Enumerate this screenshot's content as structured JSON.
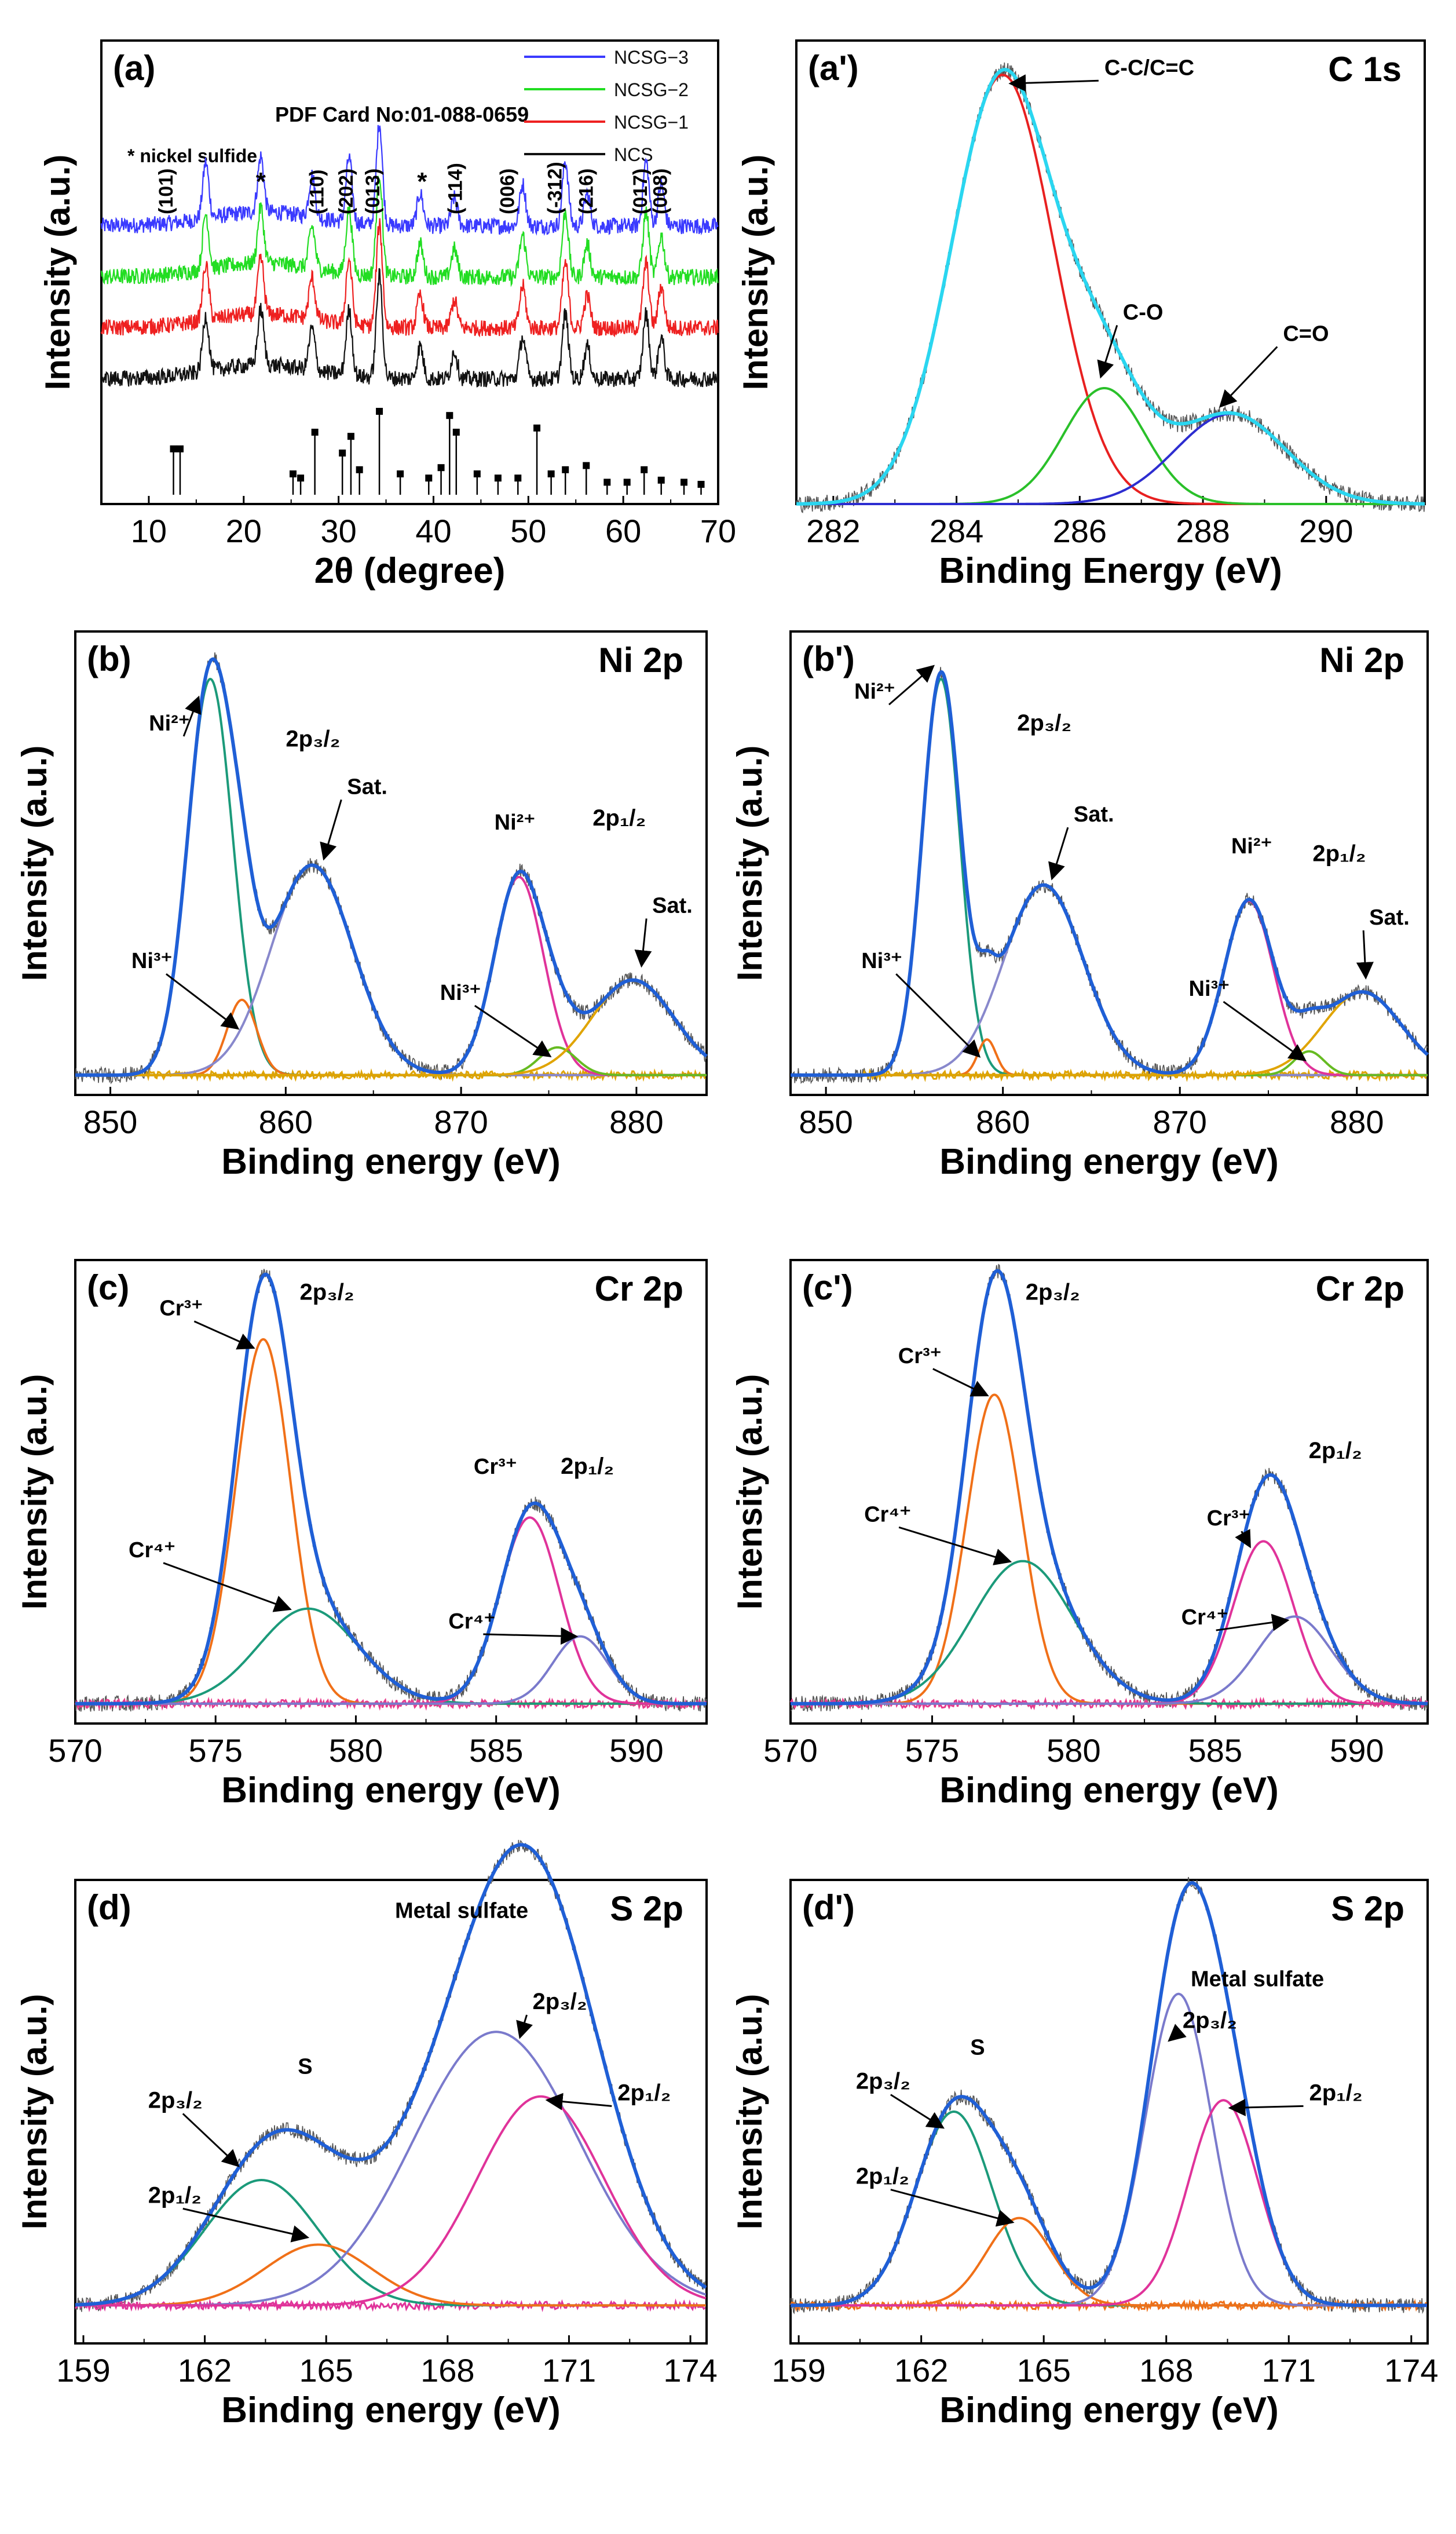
{
  "figure": {
    "background": "#ffffff",
    "axis_color": "#000000",
    "fit_color": "#1f5fd6",
    "raw_color": "#555555"
  },
  "chart_data": [
    {
      "id": "a",
      "type": "line",
      "panel_label": "(a)",
      "xlabel": "2θ (degree)",
      "ylabel": "Intensity (a.u.)",
      "xlim": [
        5,
        70
      ],
      "ylim": [
        0,
        1
      ],
      "xticks": [
        "10",
        "20",
        "30",
        "40",
        "50",
        "60",
        "70"
      ],
      "pdf_card": "PDF Card No:01-088-0659",
      "note": "* nickel sulfide",
      "legend": [
        {
          "name": "NCSG−3",
          "color": "#3a3aff"
        },
        {
          "name": "NCSG−2",
          "color": "#22dd22"
        },
        {
          "name": "NCSG−1",
          "color": "#ee2020"
        },
        {
          "name": "NCS",
          "color": "#111111"
        }
      ],
      "series": [
        {
          "name": "NCSG−3",
          "color": "#3a3aff",
          "offset": 0.6
        },
        {
          "name": "NCSG−2",
          "color": "#22dd22",
          "offset": 0.49
        },
        {
          "name": "NCSG−1",
          "color": "#ee2020",
          "offset": 0.38
        },
        {
          "name": "NCS",
          "color": "#111111",
          "offset": 0.27
        }
      ],
      "peaks": [
        {
          "x": 16,
          "h": 0.12
        },
        {
          "x": 21.8,
          "h": 0.12
        },
        {
          "x": 27.2,
          "h": 0.09
        },
        {
          "x": 31.1,
          "h": 0.14
        },
        {
          "x": 34.3,
          "h": 0.22
        },
        {
          "x": 38.6,
          "h": 0.07
        },
        {
          "x": 42.2,
          "h": 0.06
        },
        {
          "x": 49.4,
          "h": 0.09
        },
        {
          "x": 53.9,
          "h": 0.14
        },
        {
          "x": 56.2,
          "h": 0.07
        },
        {
          "x": 62.4,
          "h": 0.14
        },
        {
          "x": 64.0,
          "h": 0.09
        }
      ],
      "hkl_labels": [
        {
          "text": "(101)",
          "x": 12.5
        },
        {
          "text": "(110)",
          "x": 28.4
        },
        {
          "text": "(202)",
          "x": 31.5
        },
        {
          "text": "(013)",
          "x": 34.3
        },
        {
          "text": "(-114)",
          "x": 43.0
        },
        {
          "text": "(006)",
          "x": 48.5
        },
        {
          "text": "(-312)",
          "x": 53.5
        },
        {
          "text": "(216)",
          "x": 56.8
        },
        {
          "text": "(017)",
          "x": 62.5
        },
        {
          "text": "(008)",
          "x": 64.6
        }
      ],
      "stars": [
        21.8,
        38.8
      ],
      "ref_sticks": [
        {
          "x": 12.6,
          "h": 0.22
        },
        {
          "x": 13.3,
          "h": 0.22
        },
        {
          "x": 25.2,
          "h": 0.1
        },
        {
          "x": 26.0,
          "h": 0.08
        },
        {
          "x": 27.5,
          "h": 0.3
        },
        {
          "x": 30.4,
          "h": 0.2
        },
        {
          "x": 31.3,
          "h": 0.28
        },
        {
          "x": 32.2,
          "h": 0.12
        },
        {
          "x": 34.3,
          "h": 0.4
        },
        {
          "x": 36.5,
          "h": 0.1
        },
        {
          "x": 39.5,
          "h": 0.08
        },
        {
          "x": 40.8,
          "h": 0.13
        },
        {
          "x": 41.7,
          "h": 0.38
        },
        {
          "x": 42.4,
          "h": 0.3
        },
        {
          "x": 44.6,
          "h": 0.1
        },
        {
          "x": 46.8,
          "h": 0.08
        },
        {
          "x": 48.9,
          "h": 0.08
        },
        {
          "x": 50.9,
          "h": 0.32
        },
        {
          "x": 52.4,
          "h": 0.1
        },
        {
          "x": 53.9,
          "h": 0.12
        },
        {
          "x": 56.1,
          "h": 0.14
        },
        {
          "x": 58.3,
          "h": 0.06
        },
        {
          "x": 60.4,
          "h": 0.06
        },
        {
          "x": 62.2,
          "h": 0.12
        },
        {
          "x": 64.0,
          "h": 0.07
        },
        {
          "x": 66.4,
          "h": 0.06
        },
        {
          "x": 68.2,
          "h": 0.05
        }
      ]
    },
    {
      "id": "a2",
      "type": "line",
      "panel_label": "(a')",
      "element_label": "C 1s",
      "xlabel": "Binding Energy (eV)",
      "ylabel": "Intensity (a.u.)",
      "xlim": [
        281.4,
        291.6
      ],
      "ylim": [
        0,
        1.08
      ],
      "xticks": [
        "282",
        "284",
        "286",
        "288",
        "290"
      ],
      "envelope": {
        "name": "fit",
        "color": "#2ad6f0"
      },
      "components": [
        {
          "name": "C-C/C=C",
          "center": 284.75,
          "fwhm": 1.95,
          "amp": 1.0,
          "color": "#e82020"
        },
        {
          "name": "C-O",
          "center": 286.4,
          "fwhm": 1.55,
          "amp": 0.27,
          "color": "#2ac02a"
        },
        {
          "name": "C=O",
          "center": 288.45,
          "fwhm": 2.1,
          "amp": 0.21,
          "color": "#2d2dd0"
        }
      ],
      "annotations": [
        {
          "text": "C-C/C=C",
          "x": 286.4,
          "y": 1.0,
          "ax": 284.9,
          "ay": 0.98
        },
        {
          "text": "C-O",
          "x": 286.7,
          "y": 0.43,
          "ax": 286.35,
          "ay": 0.3
        },
        {
          "text": "C=O",
          "x": 289.3,
          "y": 0.38,
          "ax": 288.3,
          "ay": 0.23
        }
      ]
    },
    {
      "id": "b",
      "type": "line",
      "panel_label": "(b)",
      "element_label": "Ni 2p",
      "xlabel": "Binding energy (eV)",
      "ylabel": "Intensity (a.u.)",
      "xlim": [
        848,
        884
      ],
      "ylim": [
        -0.05,
        1.12
      ],
      "xticks": [
        "850",
        "860",
        "870",
        "880"
      ],
      "envelope": {
        "name": "fit",
        "color": "#1f5fd6"
      },
      "baseline": {
        "color": "#e0a400",
        "value": 0.0,
        "start": 852,
        "end": 884
      },
      "components": [
        {
          "name": "Ni2+ 2p3/2",
          "center": 855.7,
          "fwhm": 3.0,
          "amp": 1.0,
          "color": "#1b9a7a"
        },
        {
          "name": "Ni3+ 2p3/2",
          "center": 857.5,
          "fwhm": 2.0,
          "amp": 0.19,
          "color": "#f07018"
        },
        {
          "name": "Sat. 2p3/2",
          "center": 861.5,
          "fwhm": 5.5,
          "amp": 0.53,
          "color": "#8888cc"
        },
        {
          "name": "Ni2+ 2p1/2",
          "center": 873.3,
          "fwhm": 3.3,
          "amp": 0.5,
          "color": "#e0339a"
        },
        {
          "name": "Ni3+ 2p1/2",
          "center": 875.5,
          "fwhm": 2.5,
          "amp": 0.07,
          "color": "#66bb22"
        },
        {
          "name": "Sat. 2p1/2",
          "center": 879.8,
          "fwhm": 5.5,
          "amp": 0.24,
          "color": "#e0a400"
        }
      ],
      "annotations": [
        {
          "text": "Ni²⁺",
          "x": 852.2,
          "y": 0.87,
          "ax": 855.0,
          "ay": 0.95
        },
        {
          "text": "2p₃/₂",
          "x": 860.0,
          "y": 0.83
        },
        {
          "text": "Sat.",
          "x": 863.5,
          "y": 0.71,
          "ax": 862.2,
          "ay": 0.55
        },
        {
          "text": "Ni³⁺",
          "x": 851.2,
          "y": 0.27,
          "ax": 857.2,
          "ay": 0.12
        },
        {
          "text": "Ni²⁺",
          "x": 871.9,
          "y": 0.62
        },
        {
          "text": "2p₁/₂",
          "x": 877.5,
          "y": 0.63
        },
        {
          "text": "Ni³⁺",
          "x": 868.8,
          "y": 0.19,
          "ax": 875.0,
          "ay": 0.05
        },
        {
          "text": "Sat.",
          "x": 880.9,
          "y": 0.41,
          "ax": 880.3,
          "ay": 0.28
        }
      ]
    },
    {
      "id": "b2",
      "type": "line",
      "panel_label": "(b')",
      "element_label": "Ni 2p",
      "xlabel": "Binding energy (eV)",
      "ylabel": "Intensity (a.u.)",
      "xlim": [
        848,
        884
      ],
      "ylim": [
        -0.05,
        1.12
      ],
      "xticks": [
        "850",
        "860",
        "870",
        "880"
      ],
      "envelope": {
        "name": "fit",
        "color": "#1f5fd6"
      },
      "baseline": {
        "color": "#e0a400",
        "value": 0.0,
        "start": 852,
        "end": 884
      },
      "components": [
        {
          "name": "Ni2+ 2p3/2",
          "center": 856.5,
          "fwhm": 2.5,
          "amp": 1.0,
          "color": "#1b9a7a"
        },
        {
          "name": "Ni3+ 2p3/2",
          "center": 859.1,
          "fwhm": 1.2,
          "amp": 0.09,
          "color": "#f07018"
        },
        {
          "name": "Sat. 2p3/2",
          "center": 862.3,
          "fwhm": 5.3,
          "amp": 0.48,
          "color": "#8888cc"
        },
        {
          "name": "Ni2+ 2p1/2",
          "center": 873.9,
          "fwhm": 3.3,
          "amp": 0.44,
          "color": "#e0339a"
        },
        {
          "name": "Ni3+ 2p1/2",
          "center": 877.3,
          "fwhm": 2.0,
          "amp": 0.06,
          "color": "#66bb22"
        },
        {
          "name": "Sat. 2p1/2",
          "center": 880.3,
          "fwhm": 5.2,
          "amp": 0.21,
          "color": "#e0a400"
        }
      ],
      "annotations": [
        {
          "text": "Ni²⁺",
          "x": 851.6,
          "y": 0.95,
          "ax": 856.0,
          "ay": 1.03
        },
        {
          "text": "2p₃/₂",
          "x": 860.8,
          "y": 0.87
        },
        {
          "text": "Sat.",
          "x": 864.0,
          "y": 0.64,
          "ax": 862.8,
          "ay": 0.5
        },
        {
          "text": "Ni³⁺",
          "x": 852.0,
          "y": 0.27,
          "ax": 858.6,
          "ay": 0.05
        },
        {
          "text": "Ni²⁺",
          "x": 872.9,
          "y": 0.56
        },
        {
          "text": "2p₁/₂",
          "x": 877.5,
          "y": 0.54
        },
        {
          "text": "Ni³⁺",
          "x": 870.5,
          "y": 0.2,
          "ax": 877.0,
          "ay": 0.04
        },
        {
          "text": "Sat.",
          "x": 880.7,
          "y": 0.38,
          "ax": 880.5,
          "ay": 0.25
        }
      ]
    },
    {
      "id": "c",
      "type": "line",
      "panel_label": "(c)",
      "element_label": "Cr 2p",
      "xlabel": "Binding energy (eV)",
      "ylabel": "Intensity (a.u.)",
      "xlim": [
        570,
        592.5
      ],
      "ylim": [
        -0.05,
        1.12
      ],
      "xticks": [
        "570",
        "575",
        "580",
        "585",
        "590"
      ],
      "envelope": {
        "name": "fit",
        "color": "#1f5fd6"
      },
      "baseline": {
        "color": "#e83a8c",
        "value": 0.0,
        "start": 570,
        "end": 592.5
      },
      "components": [
        {
          "name": "Cr3+ 2p3/2",
          "center": 576.7,
          "fwhm": 2.3,
          "amp": 0.92,
          "color": "#f07018"
        },
        {
          "name": "Cr4+ 2p3/2",
          "center": 578.3,
          "fwhm": 4.2,
          "amp": 0.24,
          "color": "#1b9a7a"
        },
        {
          "name": "Cr3+ 2p1/2",
          "center": 586.2,
          "fwhm": 2.5,
          "amp": 0.47,
          "color": "#e0339a"
        },
        {
          "name": "Cr4+ 2p1/2",
          "center": 588.0,
          "fwhm": 2.3,
          "amp": 0.17,
          "color": "#7a7acc"
        }
      ],
      "annotations": [
        {
          "text": "Cr³⁺",
          "x": 573.0,
          "y": 0.98,
          "ax": 576.3,
          "ay": 0.9
        },
        {
          "text": "2p₃/₂",
          "x": 578.0,
          "y": 1.02
        },
        {
          "text": "Cr⁴⁺",
          "x": 571.9,
          "y": 0.37,
          "ax": 577.6,
          "ay": 0.24
        },
        {
          "text": "Cr³⁺",
          "x": 584.2,
          "y": 0.58
        },
        {
          "text": "2p₁/₂",
          "x": 587.3,
          "y": 0.58
        },
        {
          "text": "Cr⁴⁺",
          "x": 583.3,
          "y": 0.19,
          "ax": 587.8,
          "ay": 0.17
        }
      ]
    },
    {
      "id": "c2",
      "type": "line",
      "panel_label": "(c')",
      "element_label": "Cr 2p",
      "xlabel": "Binding energy (eV)",
      "ylabel": "Intensity (a.u.)",
      "xlim": [
        570,
        592.5
      ],
      "ylim": [
        -0.05,
        1.12
      ],
      "xticks": [
        "570",
        "575",
        "580",
        "585",
        "590"
      ],
      "envelope": {
        "name": "fit",
        "color": "#1f5fd6"
      },
      "baseline": {
        "color": "#e83a8c",
        "value": 0.0,
        "start": 570,
        "end": 592.5
      },
      "components": [
        {
          "name": "Cr3+ 2p3/2",
          "center": 577.2,
          "fwhm": 2.3,
          "amp": 0.78,
          "color": "#f07018"
        },
        {
          "name": "Cr4+ 2p3/2",
          "center": 578.2,
          "fwhm": 4.2,
          "amp": 0.36,
          "color": "#1b9a7a"
        },
        {
          "name": "Cr3+ 2p1/2",
          "center": 586.7,
          "fwhm": 2.5,
          "amp": 0.41,
          "color": "#e0339a"
        },
        {
          "name": "Cr4+ 2p1/2",
          "center": 587.8,
          "fwhm": 3.1,
          "amp": 0.22,
          "color": "#7a7acc"
        }
      ],
      "annotations": [
        {
          "text": "2p₃/₂",
          "x": 578.3,
          "y": 1.02
        },
        {
          "text": "Cr³⁺",
          "x": 573.8,
          "y": 0.86,
          "ax": 576.9,
          "ay": 0.78
        },
        {
          "text": "Cr⁴⁺",
          "x": 572.6,
          "y": 0.46,
          "ax": 577.7,
          "ay": 0.36
        },
        {
          "text": "2p₁/₂",
          "x": 588.3,
          "y": 0.62
        },
        {
          "text": "Cr³⁺",
          "x": 584.7,
          "y": 0.45,
          "ax": 586.2,
          "ay": 0.4
        },
        {
          "text": "Cr⁴⁺",
          "x": 583.8,
          "y": 0.2,
          "ax": 587.5,
          "ay": 0.21
        }
      ]
    },
    {
      "id": "d",
      "type": "line",
      "panel_label": "(d)",
      "element_label": "S 2p",
      "header_label": "Metal sulfate",
      "xlabel": "Binding energy (eV)",
      "ylabel": "Intensity (a.u.)",
      "xlim": [
        158.8,
        174.4
      ],
      "ylim": [
        -0.1,
        1.12
      ],
      "xticks": [
        "159",
        "162",
        "165",
        "168",
        "171",
        "174"
      ],
      "envelope": {
        "name": "fit",
        "color": "#1f5fd6"
      },
      "baseline": {
        "color": "#e0339a",
        "value": 0.0,
        "start": 158.8,
        "end": 174.4
      },
      "components": [
        {
          "name": "S 2p3/2",
          "center": 163.4,
          "fwhm": 3.3,
          "amp": 0.33,
          "color": "#1b9a7a"
        },
        {
          "name": "S 2p1/2",
          "center": 164.8,
          "fwhm": 3.1,
          "amp": 0.16,
          "color": "#f07018"
        },
        {
          "name": "Metal sulfate 2p3/2",
          "center": 169.2,
          "fwhm": 4.8,
          "amp": 0.72,
          "color": "#7a7acc"
        },
        {
          "name": "Metal sulfate 2p1/2",
          "center": 170.3,
          "fwhm": 3.7,
          "amp": 0.55,
          "color": "#e0339a"
        }
      ],
      "annotations": [
        {
          "text": "Metal sulfate",
          "x": 166.7,
          "y": 1.02
        },
        {
          "text": "S 2p",
          "x": 171.9,
          "y": 1.0,
          "bold": true
        },
        {
          "text": "2p₃/₂",
          "x": 170.1,
          "y": 0.78,
          "ax": 169.8,
          "ay": 0.71
        },
        {
          "text": "2p₁/₂",
          "x": 172.2,
          "y": 0.54,
          "ax": 170.5,
          "ay": 0.54
        },
        {
          "text": "S",
          "x": 164.3,
          "y": 0.61
        },
        {
          "text": "2p₃/₂",
          "x": 160.6,
          "y": 0.52,
          "ax": 162.8,
          "ay": 0.37
        },
        {
          "text": "2p₁/₂",
          "x": 160.6,
          "y": 0.27,
          "ax": 164.5,
          "ay": 0.18
        }
      ]
    },
    {
      "id": "d2",
      "type": "line",
      "panel_label": "(d')",
      "element_label": "S 2p",
      "header_label": "Metal sulfate",
      "xlabel": "Binding energy (eV)",
      "ylabel": "Intensity (a.u.)",
      "xlim": [
        158.8,
        174.4
      ],
      "ylim": [
        -0.1,
        1.12
      ],
      "xticks": [
        "159",
        "162",
        "165",
        "168",
        "171",
        "174"
      ],
      "envelope": {
        "name": "fit",
        "color": "#1f5fd6"
      },
      "baseline": {
        "color": "#f07018",
        "value": 0.0,
        "start": 158.8,
        "end": 174.4
      },
      "components": [
        {
          "name": "S 2p3/2",
          "center": 162.8,
          "fwhm": 2.2,
          "amp": 0.51,
          "color": "#1b9a7a"
        },
        {
          "name": "S 2p1/2",
          "center": 164.4,
          "fwhm": 1.9,
          "amp": 0.23,
          "color": "#f07018"
        },
        {
          "name": "Metal sulfate 2p3/2",
          "center": 168.3,
          "fwhm": 1.9,
          "amp": 0.82,
          "color": "#7a7acc"
        },
        {
          "name": "Metal sulfate 2p1/2",
          "center": 169.4,
          "fwhm": 2.0,
          "amp": 0.54,
          "color": "#e0339a"
        }
      ],
      "annotations": [
        {
          "text": "S 2p",
          "x": 171.6,
          "y": 0.98,
          "bold": true
        },
        {
          "text": "Metal sulfate",
          "x": 168.6,
          "y": 0.84
        },
        {
          "text": "2p₃/₂",
          "x": 168.4,
          "y": 0.73,
          "ax": 168.1,
          "ay": 0.7
        },
        {
          "text": "2p₁/₂",
          "x": 171.5,
          "y": 0.54,
          "ax": 169.6,
          "ay": 0.52
        },
        {
          "text": "S",
          "x": 163.2,
          "y": 0.66
        },
        {
          "text": "2p₃/₂",
          "x": 160.4,
          "y": 0.57,
          "ax": 162.5,
          "ay": 0.47
        },
        {
          "text": "2p₁/₂",
          "x": 160.4,
          "y": 0.32,
          "ax": 164.2,
          "ay": 0.22
        }
      ]
    }
  ]
}
